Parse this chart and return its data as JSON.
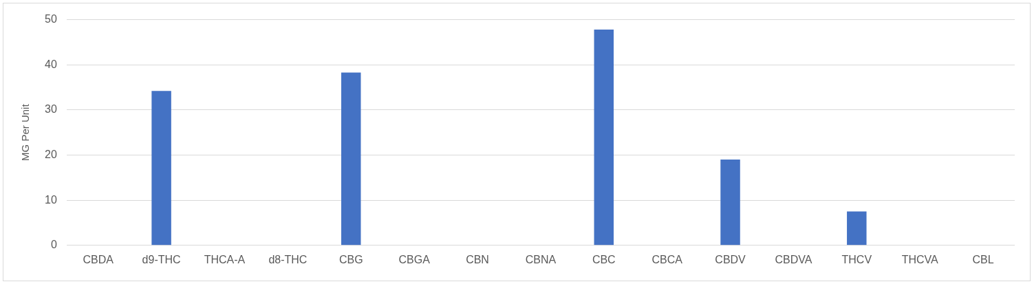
{
  "chart_data": {
    "type": "bar",
    "ylabel": "MG Per Unit",
    "categories": [
      "CBDA",
      "d9-THC",
      "THCA-A",
      "d8-THC",
      "CBG",
      "CBGA",
      "CBN",
      "CBNA",
      "CBC",
      "CBCA",
      "CBDV",
      "CBDVA",
      "THCV",
      "THCVA",
      "CBL"
    ],
    "values": [
      0,
      34.2,
      0,
      0,
      38.3,
      0,
      0,
      0,
      47.8,
      0,
      19,
      0,
      7.5,
      0,
      0
    ],
    "color": "#4472c4",
    "ylim": [
      0,
      50
    ],
    "yticks": [
      0,
      10,
      20,
      30,
      40,
      50
    ],
    "grid": "y",
    "legend": false
  }
}
